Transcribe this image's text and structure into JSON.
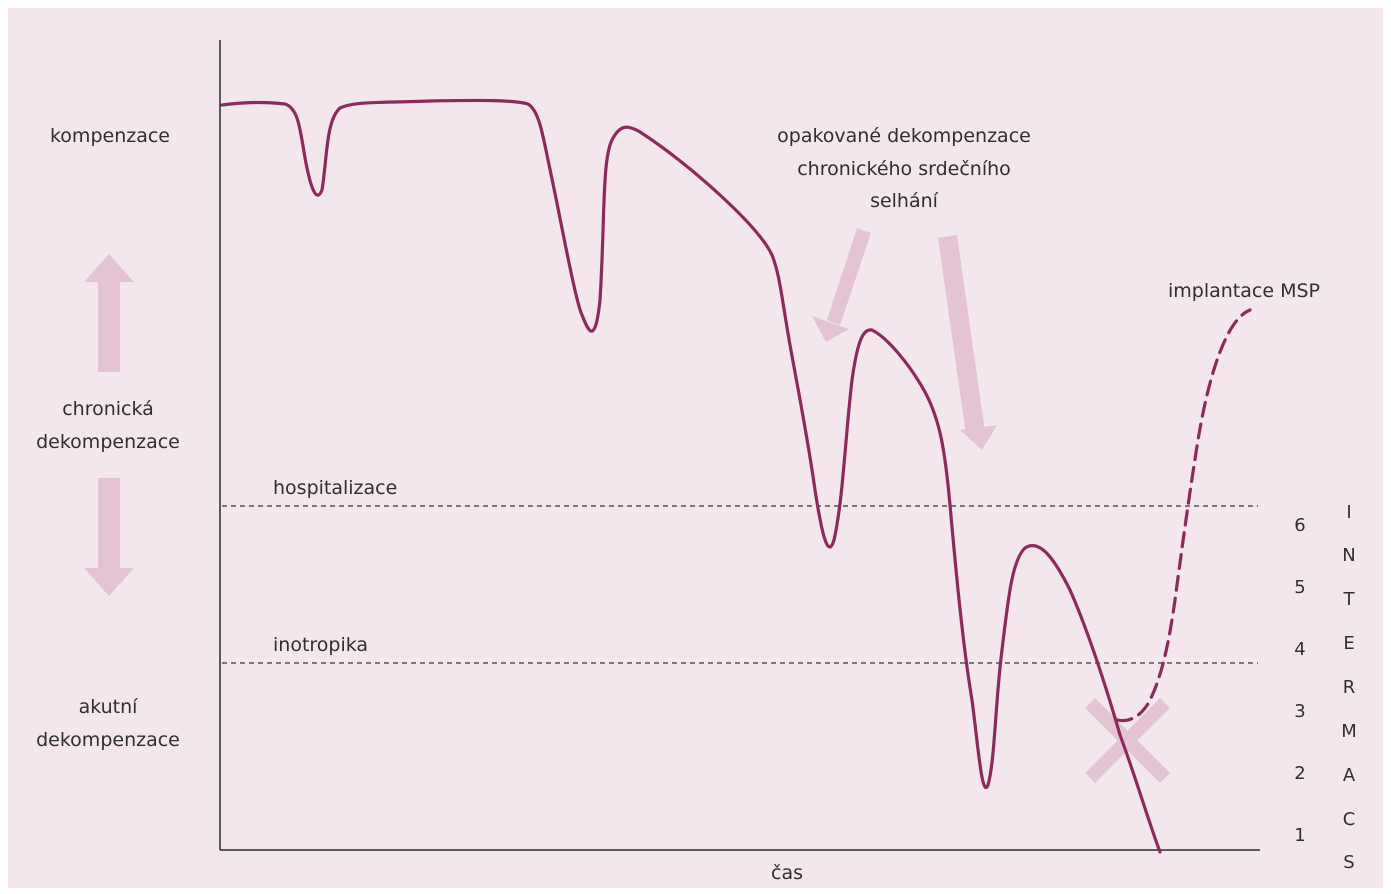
{
  "y_states": {
    "kompenzace": "kompenzace",
    "chronicka": [
      "chronická",
      "dekompenzace"
    ],
    "akutni": [
      "akutní",
      "dekompenzace"
    ]
  },
  "thresholds": {
    "hospitalizace": "hospitalizace",
    "inotropika": "inotropika"
  },
  "annotations": {
    "opakovane": [
      "opakované dekompenzace",
      "chronického srdečního",
      "selhání"
    ],
    "implantace": "implantace MSP"
  },
  "x_label": "čas",
  "intermacs": {
    "levels": [
      "6",
      "5",
      "4",
      "3",
      "2",
      "1"
    ],
    "letters": [
      "I",
      "N",
      "T",
      "E",
      "R",
      "M",
      "A",
      "C",
      "S"
    ]
  },
  "colors": {
    "background": "#f3e6ec",
    "curve": "#8b2a5c",
    "arrows": "#e4c4d2",
    "axis": "#2a2a2a"
  }
}
